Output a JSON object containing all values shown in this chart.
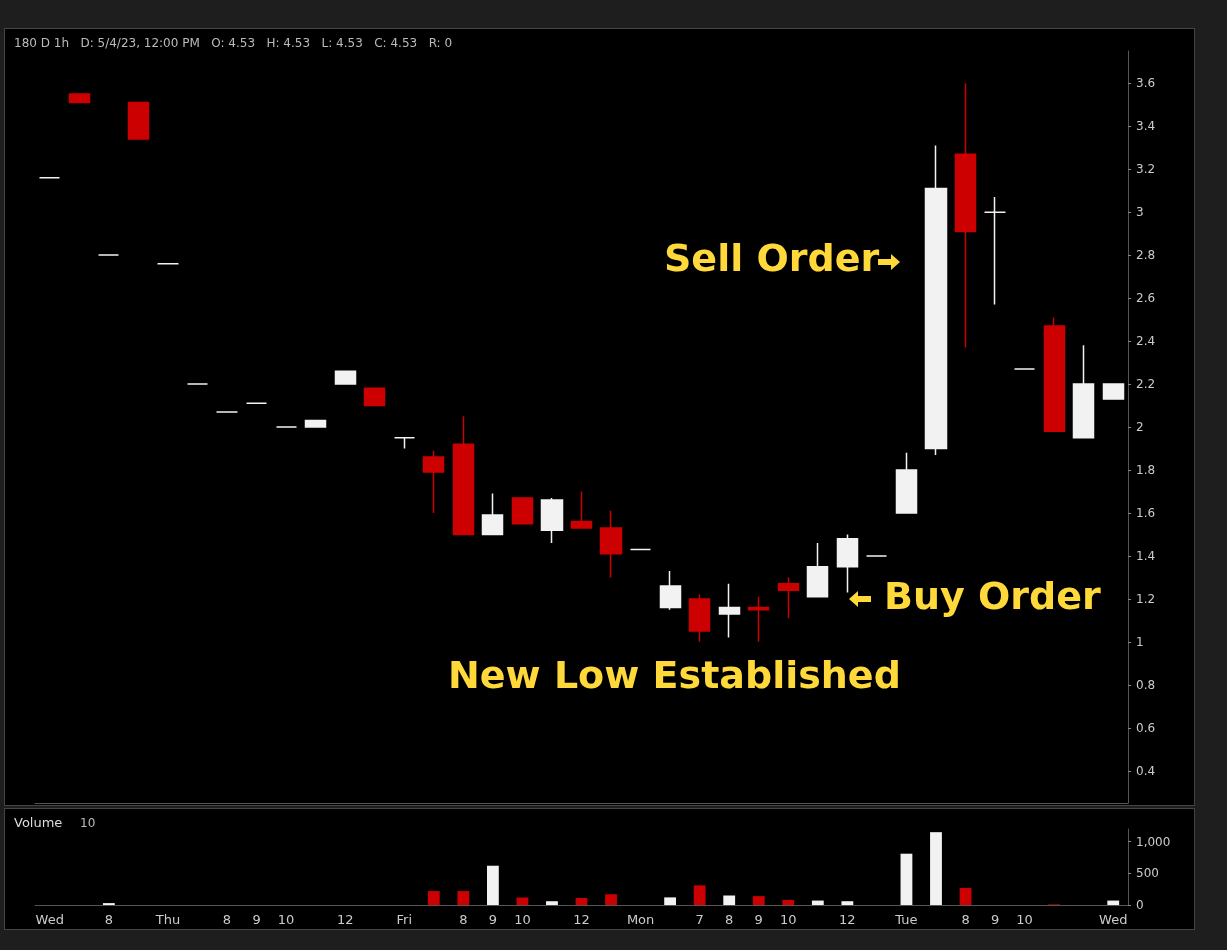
{
  "chart_data": [
    {
      "type": "candlestick",
      "subtitle": "180 D 1h   D: 5/4/23, 12:00 PM   O: 4.53   H: 4.53   L: 4.53   C: 4.53   R: 0",
      "categories": [
        null,
        null,
        null,
        null,
        null,
        null,
        null,
        null,
        null,
        null,
        null,
        null,
        null,
        null,
        null,
        null,
        null,
        null,
        null,
        null,
        null,
        null,
        null,
        null,
        null,
        null,
        null,
        null,
        null,
        null,
        null,
        null,
        null,
        null,
        null,
        null,
        null
      ],
      "ohlc": [
        [
          3.16,
          3.16,
          3.16,
          3.16
        ],
        [
          3.55,
          3.55,
          3.51,
          3.51
        ],
        [
          2.8,
          2.8,
          2.8,
          2.8
        ],
        [
          3.51,
          3.51,
          3.34,
          3.34
        ],
        [
          2.76,
          2.76,
          2.76,
          2.76
        ],
        [
          2.2,
          2.2,
          2.2,
          2.2
        ],
        [
          2.07,
          2.07,
          2.07,
          2.07
        ],
        [
          2.11,
          2.11,
          2.11,
          2.11
        ],
        [
          2.0,
          2.0,
          2.0,
          2.0
        ],
        [
          2.0,
          2.03,
          2.0,
          2.03
        ],
        [
          2.2,
          2.26,
          2.2,
          2.26
        ],
        [
          2.18,
          2.18,
          2.1,
          2.1
        ],
        [
          1.95,
          1.95,
          1.9,
          1.95
        ],
        [
          1.86,
          1.89,
          1.6,
          1.79
        ],
        [
          1.92,
          2.05,
          1.5,
          1.5
        ],
        [
          1.5,
          1.69,
          1.5,
          1.59
        ],
        [
          1.67,
          1.67,
          1.55,
          1.55
        ],
        [
          1.52,
          1.67,
          1.46,
          1.66
        ],
        [
          1.56,
          1.7,
          1.53,
          1.53
        ],
        [
          1.53,
          1.61,
          1.3,
          1.41
        ],
        [
          1.43,
          1.43,
          1.43,
          1.43
        ],
        [
          1.16,
          1.33,
          1.15,
          1.26
        ],
        [
          1.2,
          1.22,
          1.0,
          1.05
        ],
        [
          1.13,
          1.27,
          1.02,
          1.16
        ],
        [
          1.16,
          1.21,
          1.0,
          1.15
        ],
        [
          1.27,
          1.3,
          1.11,
          1.24
        ],
        [
          1.21,
          1.46,
          1.21,
          1.35
        ],
        [
          1.35,
          1.5,
          1.23,
          1.48
        ],
        [
          1.4,
          1.4,
          1.4,
          1.4
        ],
        [
          1.6,
          1.88,
          1.6,
          1.8
        ],
        [
          1.9,
          3.31,
          1.87,
          3.11
        ],
        [
          3.27,
          3.6,
          2.37,
          2.91
        ],
        [
          3.0,
          3.07,
          2.57,
          3.0
        ],
        [
          2.27,
          2.27,
          2.27,
          2.27
        ],
        [
          2.47,
          2.51,
          1.98,
          1.98
        ],
        [
          1.95,
          2.38,
          1.95,
          2.2
        ],
        [
          2.13,
          2.2,
          2.13,
          2.2
        ]
      ],
      "colors": [
        "#f2f2f2",
        "#cc0000",
        "#f2f2f2",
        "#cc0000",
        "#f2f2f2",
        "#f2f2f2",
        "#f2f2f2",
        "#f2f2f2",
        "#f2f2f2",
        "#f2f2f2",
        "#f2f2f2",
        "#cc0000",
        "#f2f2f2",
        "#cc0000",
        "#cc0000",
        "#f2f2f2",
        "#cc0000",
        "#f2f2f2",
        "#cc0000",
        "#cc0000",
        "#f2f2f2",
        "#f2f2f2",
        "#cc0000",
        "#f2f2f2",
        "#cc0000",
        "#cc0000",
        "#f2f2f2",
        "#f2f2f2",
        "#f2f2f2",
        "#f2f2f2",
        "#f2f2f2",
        "#cc0000",
        "#f2f2f2",
        "#f2f2f2",
        "#cc0000",
        "#f2f2f2",
        "#f2f2f2"
      ],
      "ylim": [
        0.25,
        3.75
      ],
      "yticks": [
        0.4,
        0.6,
        0.8,
        1,
        1.2,
        1.4,
        1.6,
        1.8,
        2,
        2.2,
        2.4,
        2.6,
        2.8,
        3,
        3.2,
        3.4,
        3.6
      ],
      "grid": false,
      "tick_labels": "y",
      "annotations": [
        "Sell Order",
        "Buy Order",
        "New Low Established"
      ]
    },
    {
      "type": "bar",
      "title": "Volume",
      "subtitle": "10",
      "categories": [
        "Wed",
        null,
        "8",
        null,
        "Thu",
        null,
        "8",
        "9",
        "10",
        null,
        "12",
        null,
        "Fri",
        null,
        "8",
        "9",
        "10",
        null,
        "12",
        null,
        "Mon",
        null,
        "7",
        "8",
        "9",
        "10",
        null,
        "12",
        null,
        "Tue",
        null,
        "8",
        "9",
        "10",
        null,
        null,
        "Wed"
      ],
      "values": [
        0,
        0,
        30,
        0,
        0,
        0,
        0,
        0,
        0,
        0,
        0,
        0,
        0,
        220,
        220,
        620,
        120,
        60,
        110,
        170,
        0,
        120,
        310,
        150,
        140,
        80,
        70,
        60,
        0,
        810,
        1150,
        270,
        0,
        0,
        10,
        0,
        70
      ],
      "colors": [
        "#f2f2f2",
        "#cc0000",
        "#f2f2f2",
        "#cc0000",
        "#f2f2f2",
        "#f2f2f2",
        "#f2f2f2",
        "#f2f2f2",
        "#f2f2f2",
        "#f2f2f2",
        "#f2f2f2",
        "#cc0000",
        "#f2f2f2",
        "#cc0000",
        "#cc0000",
        "#f2f2f2",
        "#cc0000",
        "#f2f2f2",
        "#cc0000",
        "#cc0000",
        "#f2f2f2",
        "#f2f2f2",
        "#cc0000",
        "#f2f2f2",
        "#cc0000",
        "#cc0000",
        "#f2f2f2",
        "#f2f2f2",
        "#f2f2f2",
        "#f2f2f2",
        "#f2f2f2",
        "#cc0000",
        "#f2f2f2",
        "#f2f2f2",
        "#cc0000",
        "#f2f2f2",
        "#f2f2f2"
      ],
      "ylim": [
        0,
        1200
      ],
      "yticks": [
        0,
        500,
        {
          "value": 1000,
          "label": "1,000"
        }
      ],
      "grid": false
    }
  ]
}
